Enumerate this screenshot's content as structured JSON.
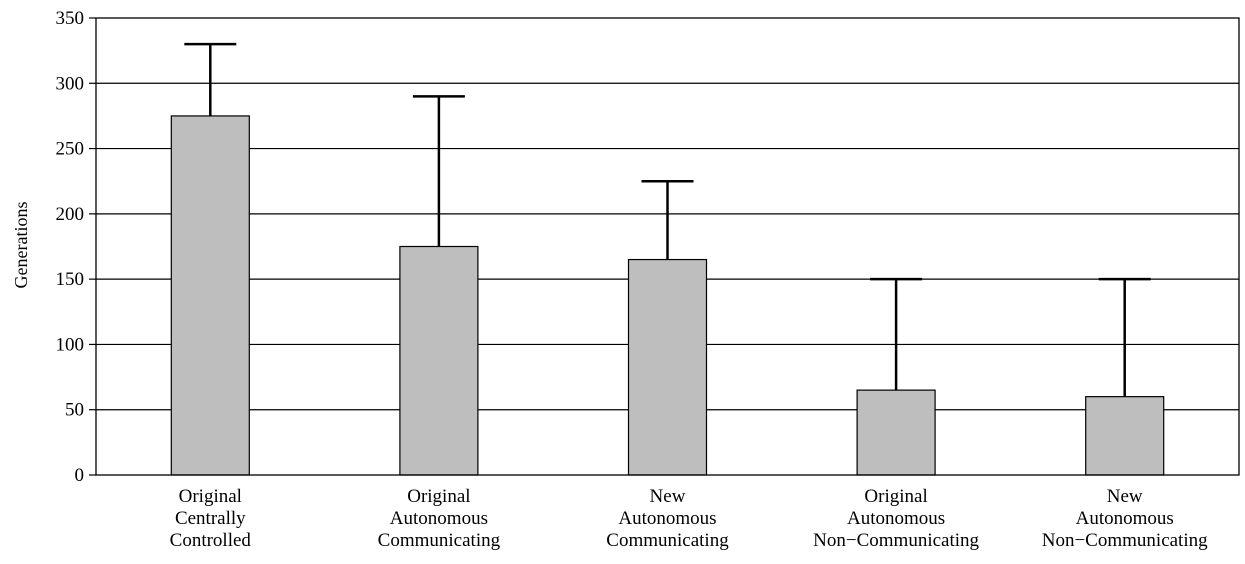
{
  "chart_data": {
    "type": "bar",
    "title": "",
    "xlabel": "",
    "ylabel": "Generations",
    "ylim": [
      0,
      350
    ],
    "yticks": [
      0,
      50,
      100,
      150,
      200,
      250,
      300,
      350
    ],
    "grid": true,
    "categories": [
      [
        "Original",
        "Centrally",
        "Controlled"
      ],
      [
        "Original",
        "Autonomous",
        "Communicating"
      ],
      [
        "New",
        "Autonomous",
        "Communicating"
      ],
      [
        "Original",
        "Autonomous",
        "Non−Communicating"
      ],
      [
        "New",
        "Autonomous",
        "Non−Communicating"
      ]
    ],
    "values": [
      275,
      175,
      165,
      65,
      60
    ],
    "error_upper": [
      330,
      290,
      225,
      150,
      150
    ],
    "colors": {
      "bar_fill": "#bebebe",
      "bar_stroke": "#000000",
      "grid": "#000000"
    }
  }
}
